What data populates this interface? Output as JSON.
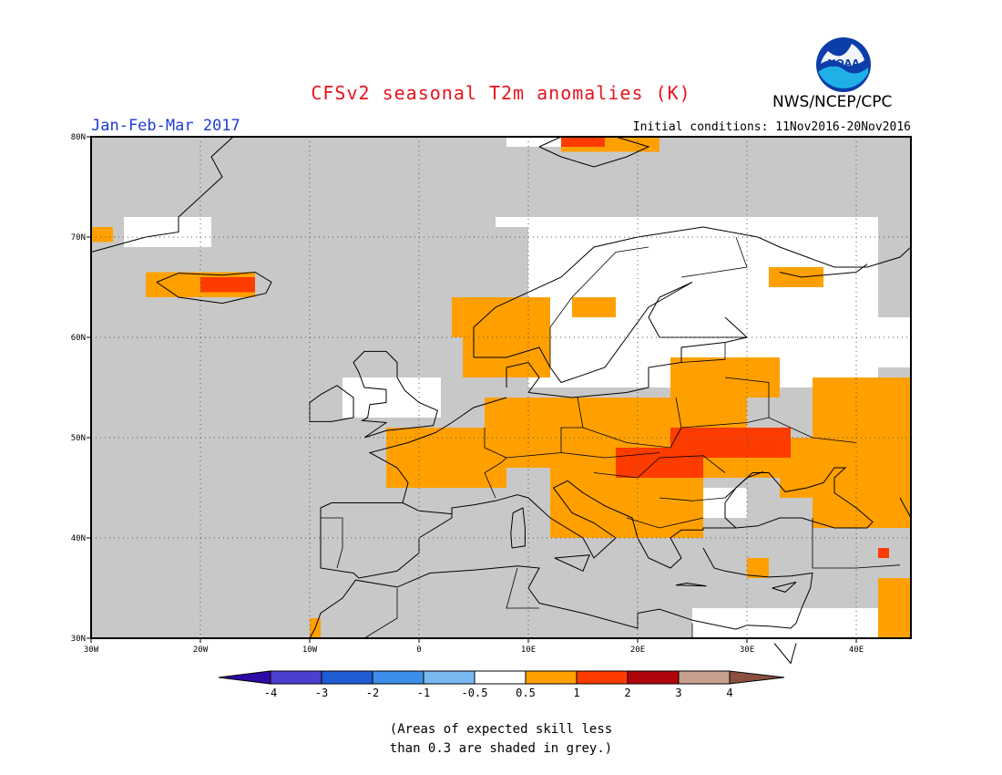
{
  "title": "CFSv2 seasonal T2m anomalies (K)",
  "agency": "NWS/NCEP/CPC",
  "logo_text": "NOAA",
  "season": "Jan-Feb-Mar 2017",
  "initial_conditions": "Initial conditions: 11Nov2016-20Nov2016",
  "lat_ticks": [
    "80N",
    "70N",
    "60N",
    "50N",
    "40N",
    "30N"
  ],
  "lon_ticks": [
    "30W",
    "20W",
    "10W",
    "0",
    "10E",
    "20E",
    "30E",
    "40E"
  ],
  "colorbar": {
    "labels": [
      "-4",
      "-3",
      "-2",
      "-1",
      "-0.5",
      "0.5",
      "1",
      "2",
      "3",
      "4"
    ],
    "colors": [
      "#2e0aa6",
      "#4a3fd1",
      "#1f5cd6",
      "#3d8ee8",
      "#7ab8f2",
      "#ffffff",
      "#ffa000",
      "#ff3c00",
      "#b0050a",
      "#c8a090",
      "#8b5040"
    ]
  },
  "note_line1": "(Areas of expected skill less",
  "note_line2": "than 0.3 are shaded in grey.)",
  "map_colors": {
    "grey": "#c8c8c8",
    "warm1": "#ffa000",
    "warm2": "#ff3c00",
    "white": "#ffffff"
  }
}
